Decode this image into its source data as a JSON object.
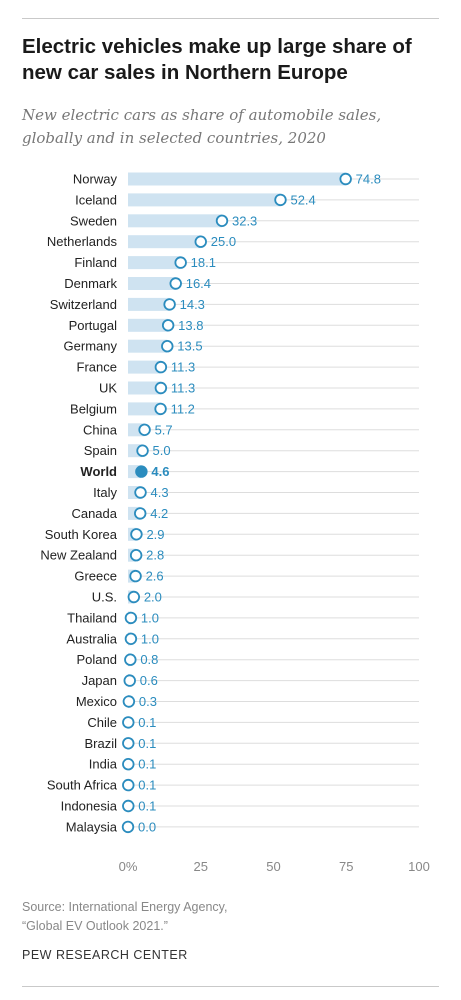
{
  "header": {
    "title": "Electric vehicles make up large share of new car sales in Northern Europe",
    "subtitle": "New electric cars as share of automobile sales, globally and in selected countries, 2020"
  },
  "footer": {
    "source_line1": "Source: International Energy Agency,",
    "source_line2": "“Global EV Outlook 2021.”",
    "brand": "PEW RESEARCH CENTER"
  },
  "colors": {
    "bar": "#cfe3f1",
    "marker": "#2b8cbe",
    "label": "#2b8cbe",
    "grid": "#dddddd",
    "tick": "#888888",
    "category": "#222222"
  },
  "chart_data": {
    "type": "bar",
    "orientation": "horizontal",
    "title": "Electric vehicles make up large share of new car sales in Northern Europe",
    "subtitle": "New electric cars as share of automobile sales, globally and in selected countries, 2020",
    "categories": [
      "Norway",
      "Iceland",
      "Sweden",
      "Netherlands",
      "Finland",
      "Denmark",
      "Switzerland",
      "Portugal",
      "Germany",
      "France",
      "UK",
      "Belgium",
      "China",
      "Spain",
      "World",
      "Italy",
      "Canada",
      "South Korea",
      "New Zealand",
      "Greece",
      "U.S.",
      "Thailand",
      "Australia",
      "Poland",
      "Japan",
      "Mexico",
      "Chile",
      "Brazil",
      "India",
      "South Africa",
      "Indonesia",
      "Malaysia"
    ],
    "values": [
      74.8,
      52.4,
      32.3,
      25.0,
      18.1,
      16.4,
      14.3,
      13.8,
      13.5,
      11.3,
      11.3,
      11.2,
      5.7,
      5.0,
      4.6,
      4.3,
      4.2,
      2.9,
      2.8,
      2.6,
      2.0,
      1.0,
      1.0,
      0.8,
      0.6,
      0.3,
      0.1,
      0.1,
      0.1,
      0.1,
      0.1,
      0.0
    ],
    "value_labels": [
      "74.8",
      "52.4",
      "32.3",
      "25.0",
      "18.1",
      "16.4",
      "14.3",
      "13.8",
      "13.5",
      "11.3",
      "11.3",
      "11.2",
      "5.7",
      "5.0",
      "4.6",
      "4.3",
      "4.2",
      "2.9",
      "2.8",
      "2.6",
      "2.0",
      "1.0",
      "1.0",
      "0.8",
      "0.6",
      "0.3",
      "0.1",
      "0.1",
      "0.1",
      "0.1",
      "0.1",
      "0.0"
    ],
    "highlight": "World",
    "xlim": [
      0,
      100
    ],
    "xticks": [
      0,
      25,
      50,
      75,
      100
    ],
    "xtick_labels": [
      "0%",
      "25",
      "50",
      "75",
      "100"
    ],
    "grid": true,
    "legend": "none"
  }
}
